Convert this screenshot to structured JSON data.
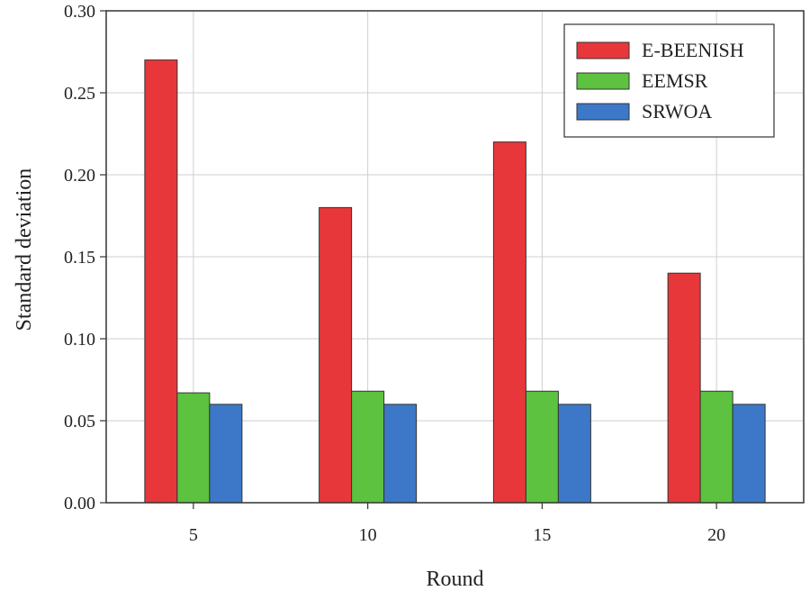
{
  "chart_data": {
    "type": "bar",
    "title": "",
    "xlabel": "Round",
    "ylabel": "Standard deviation",
    "categories": [
      "5",
      "10",
      "15",
      "20"
    ],
    "ylim": [
      0,
      0.3
    ],
    "yticks": [
      "0.00",
      "0.05",
      "0.10",
      "0.15",
      "0.20",
      "0.25",
      "0.30"
    ],
    "grid": true,
    "legend_position": "top-right",
    "series": [
      {
        "name": "E-BEENISH",
        "color": "#e8373a",
        "values": [
          0.27,
          0.18,
          0.22,
          0.14
        ]
      },
      {
        "name": "EEMSR",
        "color": "#5cc23f",
        "values": [
          0.067,
          0.068,
          0.068,
          0.068
        ]
      },
      {
        "name": "SRWOA",
        "color": "#3d78c8",
        "values": [
          0.06,
          0.06,
          0.06,
          0.06
        ]
      }
    ]
  }
}
